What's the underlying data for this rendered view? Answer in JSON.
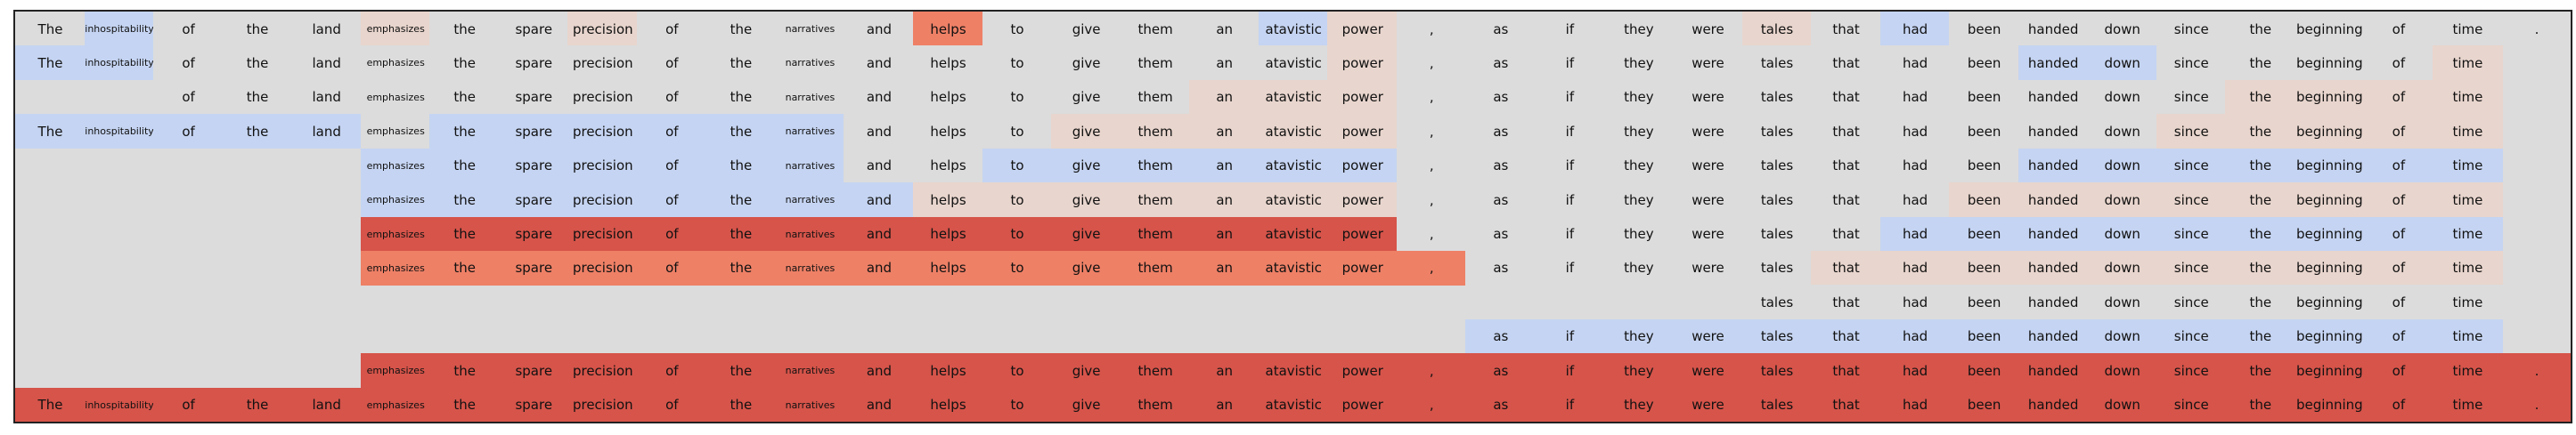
{
  "chart_data": {
    "type": "heatmap",
    "title": "",
    "xlabel": "",
    "ylabel": "",
    "colormap": "coolwarm",
    "colors": {
      "background": "#dcdcdc",
      "frame": "#222222",
      "text": "#111111",
      "low": "#3b4cc0",
      "mid": "#dddddd",
      "high": "#b40426"
    },
    "tokens": [
      "The",
      "inhospitability",
      "of",
      "the",
      "land",
      "emphasizes",
      "the",
      "spare",
      "precision",
      "of",
      "the",
      "narratives",
      "and",
      "helps",
      "to",
      "give",
      "them",
      "an",
      "atavistic",
      "power",
      ",",
      "as",
      "if",
      "they",
      "were",
      "tales",
      "that",
      "had",
      "been",
      "handed",
      "down",
      "since",
      "the",
      "beginning",
      "of",
      "time",
      "."
    ],
    "small_tokens": [
      "inhospitability",
      "emphasizes",
      "narratives"
    ],
    "rows": [
      {
        "first": 0,
        "last": 36,
        "color_class": [
          4,
          0,
          4,
          4,
          4,
          1,
          4,
          4,
          1,
          4,
          4,
          4,
          4,
          2,
          4,
          4,
          4,
          4,
          0,
          1,
          4,
          4,
          4,
          4,
          4,
          1,
          4,
          0,
          4,
          4,
          4,
          4,
          4,
          4,
          4,
          4,
          4
        ]
      },
      {
        "first": 0,
        "last": 35,
        "color_class": [
          0,
          0,
          -1,
          4,
          4,
          -1,
          -1,
          4,
          4,
          -1,
          4,
          4,
          -1,
          -1,
          -1,
          4,
          4,
          -1,
          4,
          1,
          -1,
          -1,
          -1,
          -1,
          -1,
          -1,
          -1,
          -1,
          -1,
          0,
          0,
          -1,
          4,
          4,
          4,
          1,
          -1
        ]
      },
      {
        "first": 2,
        "last": 35,
        "color_class": [
          -1,
          -1,
          4,
          4,
          4,
          -1,
          4,
          4,
          4,
          4,
          4,
          4,
          -1,
          -1,
          -1,
          -1,
          -1,
          1,
          1,
          1,
          -1,
          -1,
          -1,
          -1,
          -1,
          -1,
          -1,
          -1,
          -1,
          -1,
          -1,
          -1,
          1,
          1,
          1,
          1,
          -1
        ]
      },
      {
        "first": 0,
        "last": 35,
        "color_class": [
          0,
          0,
          0,
          0,
          0,
          -1,
          0,
          0,
          0,
          0,
          0,
          0,
          -1,
          -1,
          -1,
          1,
          1,
          1,
          1,
          1,
          -1,
          -1,
          -1,
          -1,
          -1,
          -1,
          -1,
          -1,
          -1,
          -1,
          -1,
          1,
          1,
          1,
          1,
          1,
          -1
        ]
      },
      {
        "first": 5,
        "last": 35,
        "color_class": [
          -1,
          -1,
          -1,
          -1,
          -1,
          0,
          0,
          0,
          0,
          0,
          0,
          0,
          -1,
          -1,
          0,
          0,
          0,
          0,
          0,
          0,
          -1,
          -1,
          -1,
          -1,
          -1,
          -1,
          -1,
          -1,
          -1,
          0,
          0,
          0,
          0,
          0,
          0,
          0,
          -1
        ]
      },
      {
        "first": 5,
        "last": 35,
        "color_class": [
          -1,
          -1,
          -1,
          -1,
          -1,
          0,
          0,
          0,
          0,
          0,
          0,
          0,
          0,
          1,
          1,
          1,
          1,
          1,
          1,
          1,
          -1,
          -1,
          -1,
          -1,
          -1,
          -1,
          -1,
          -1,
          1,
          1,
          1,
          1,
          1,
          1,
          1,
          1,
          -1
        ]
      },
      {
        "first": 5,
        "last": 35,
        "color_class": [
          -1,
          -1,
          -1,
          -1,
          -1,
          3,
          3,
          3,
          3,
          3,
          3,
          3,
          3,
          3,
          3,
          3,
          3,
          3,
          3,
          3,
          -1,
          -1,
          -1,
          -1,
          -1,
          -1,
          -1,
          0,
          0,
          0,
          0,
          0,
          0,
          0,
          0,
          0,
          -1
        ]
      },
      {
        "first": 5,
        "last": 35,
        "color_class": [
          -1,
          -1,
          -1,
          -1,
          -1,
          2,
          2,
          2,
          2,
          2,
          2,
          2,
          2,
          2,
          2,
          2,
          2,
          2,
          2,
          2,
          2,
          -1,
          -1,
          -1,
          -1,
          -1,
          1,
          1,
          1,
          1,
          1,
          1,
          1,
          1,
          1,
          1,
          -1
        ]
      },
      {
        "first": 25,
        "last": 35,
        "color_class": [
          -1,
          -1,
          -1,
          -1,
          -1,
          -1,
          -1,
          -1,
          -1,
          -1,
          -1,
          -1,
          -1,
          -1,
          -1,
          -1,
          -1,
          -1,
          -1,
          -1,
          -1,
          -1,
          -1,
          -1,
          -1,
          4,
          4,
          4,
          4,
          4,
          4,
          4,
          4,
          4,
          4,
          4,
          -1
        ]
      },
      {
        "first": 21,
        "last": 35,
        "color_class": [
          -1,
          -1,
          -1,
          -1,
          -1,
          -1,
          -1,
          -1,
          -1,
          -1,
          -1,
          -1,
          -1,
          -1,
          -1,
          -1,
          -1,
          -1,
          -1,
          -1,
          -1,
          0,
          0,
          0,
          0,
          0,
          0,
          0,
          0,
          0,
          0,
          0,
          0,
          0,
          0,
          0,
          -1
        ]
      },
      {
        "first": 5,
        "last": 36,
        "color_class": [
          -1,
          -1,
          -1,
          -1,
          -1,
          3,
          3,
          3,
          3,
          3,
          3,
          3,
          3,
          3,
          3,
          3,
          3,
          3,
          3,
          3,
          3,
          3,
          3,
          3,
          3,
          3,
          3,
          3,
          3,
          3,
          3,
          3,
          3,
          3,
          3,
          3,
          3
        ]
      },
      {
        "first": 0,
        "last": 36,
        "color_class": [
          3,
          3,
          3,
          3,
          3,
          3,
          3,
          3,
          3,
          3,
          3,
          3,
          3,
          3,
          3,
          3,
          3,
          3,
          3,
          3,
          3,
          3,
          3,
          3,
          3,
          3,
          3,
          3,
          3,
          3,
          3,
          3,
          3,
          3,
          3,
          3,
          3
        ]
      }
    ],
    "palette": [
      "#c5d4f2",
      "#e8d5cd",
      "#ee8066",
      "#d6544a",
      "#dcdcdc"
    ]
  }
}
